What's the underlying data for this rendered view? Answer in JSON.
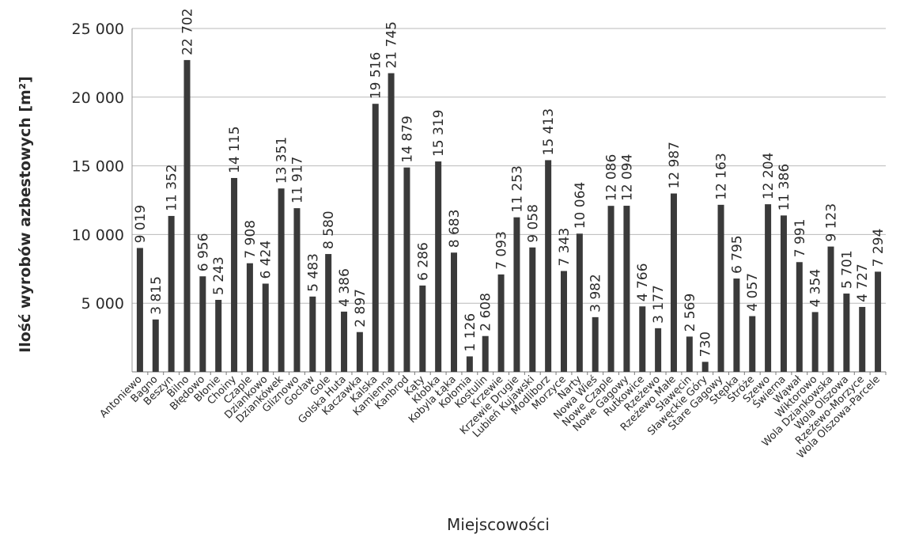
{
  "chart_data": {
    "type": "bar",
    "xlabel": "Miejscowości",
    "ylabel": "Ilość wyrobów azbestowych [m²]",
    "ylim": [
      0,
      25000
    ],
    "yticks": [
      5000,
      10000,
      15000,
      20000,
      25000
    ],
    "ytick_labels": [
      "5 000",
      "10 000",
      "15 000",
      "20 000",
      "25 000"
    ],
    "grid": true,
    "bar_color": "#3a3a3a",
    "categories": [
      "Antoniewo",
      "Bagno",
      "Beszyn",
      "Bilno",
      "Błędowo",
      "Błonie",
      "Choiny",
      "Czaple",
      "Dziankowo",
      "Dziankówek",
      "Gliznowo",
      "Gocław",
      "Gole",
      "Golska Huta",
      "Kaczawka",
      "Kalska",
      "Kamienna",
      "Kanbrod",
      "Kąty",
      "Kłobka",
      "Kobyla Łąka",
      "Kołomia",
      "Kostulin",
      "Krzewie",
      "Krzewie Drugie",
      "Lubień Kujawski",
      "Modliborz",
      "Morzyce",
      "Narty",
      "Nowa Wieś",
      "Nowe Czaple",
      "Nowe Gagowy",
      "Rutkowice",
      "Rzeżewo",
      "Rzeżewo Małe",
      "Sławęcin",
      "Sławęckie Góry",
      "Stare Gagowy",
      "Stępka",
      "Stróże",
      "Szewo",
      "Świerna",
      "Wąwał",
      "Wiktorowo",
      "Wola Dziankowska",
      "Wola Olszowa",
      "Rzeżewo-Morzyce",
      "Wola Olszowa-Parcele"
    ],
    "values": [
      9019,
      3815,
      11352,
      22702,
      6956,
      5243,
      14115,
      7908,
      6424,
      13351,
      11917,
      5483,
      8580,
      4386,
      2897,
      19516,
      21745,
      14879,
      6286,
      15319,
      8683,
      1126,
      2608,
      7093,
      11253,
      9058,
      15413,
      7343,
      10064,
      3982,
      12086,
      12094,
      4766,
      3177,
      12987,
      2569,
      730,
      12163,
      6795,
      4057,
      12204,
      11386,
      7991,
      4354,
      9123,
      5701,
      4727,
      7294
    ],
    "value_labels": [
      "9 019",
      "3 815",
      "11 352",
      "22 702",
      "6 956",
      "5 243",
      "14 115",
      "7 908",
      "6 424",
      "13 351",
      "11 917",
      "5 483",
      "8 580",
      "4 386",
      "2 897",
      "19 516",
      "21 745",
      "14 879",
      "6 286",
      "15 319",
      "8 683",
      "1 126",
      "2 608",
      "7 093",
      "11 253",
      "9 058",
      "15 413",
      "7 343",
      "10 064",
      "3 982",
      "12 086",
      "12 094",
      "4 766",
      "3 177",
      "12 987",
      "2 569",
      "730",
      "12 163",
      "6 795",
      "4 057",
      "12 204",
      "11 386",
      "7 991",
      "4 354",
      "9 123",
      "5 701",
      "4 727",
      "7 294"
    ]
  }
}
